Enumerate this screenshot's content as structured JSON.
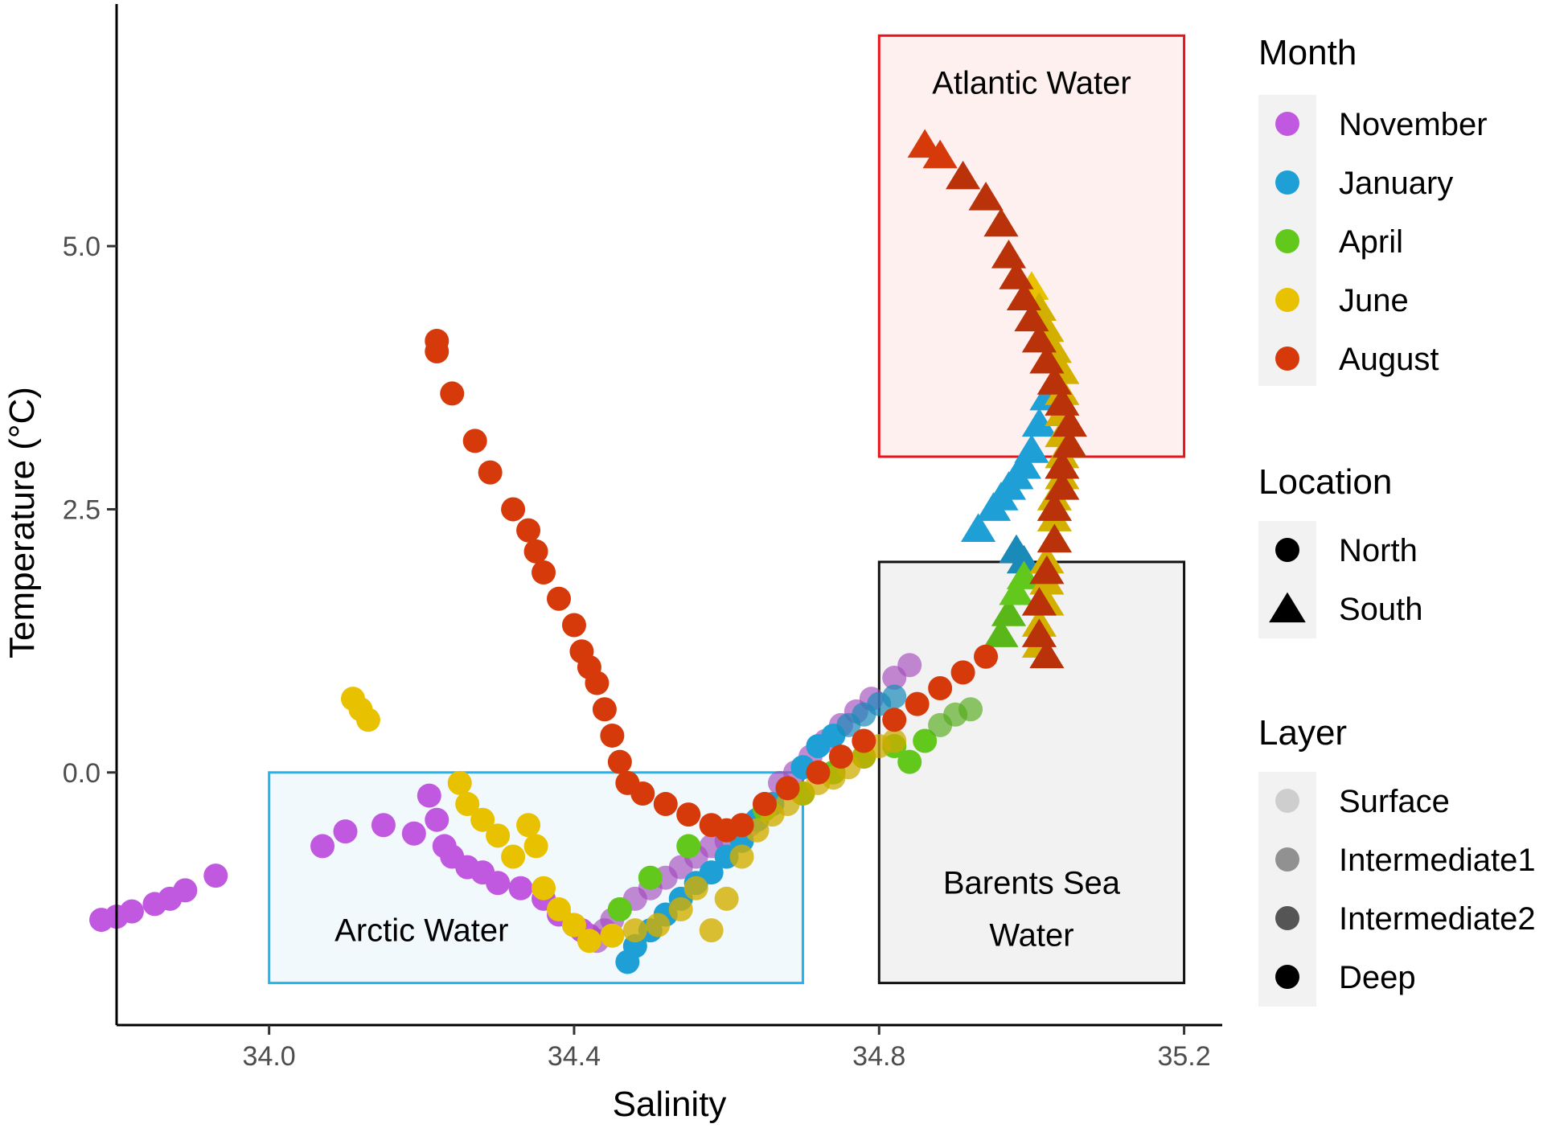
{
  "colors": {
    "November": "#c159e0",
    "January": "#1ea0d6",
    "April": "#62c91c",
    "June": "#e8c100",
    "August": "#d63a0b",
    "atlantic_stroke": "#e8141c",
    "atlantic_fill": "#fff0f0",
    "arctic_stroke": "#22b4ec",
    "arctic_fill": "#f1f9fc",
    "barents_stroke": "#111111",
    "barents_fill": "#f2f2f2"
  },
  "chart_data": {
    "type": "scatter",
    "xlabel": "Salinity",
    "ylabel": "Temperature (°C)",
    "xlim": [
      33.8,
      35.25
    ],
    "ylim": [
      -2.4,
      7.3
    ],
    "x_ticks": [
      {
        "value": 34.0,
        "label": "34.0"
      },
      {
        "value": 34.4,
        "label": "34.4"
      },
      {
        "value": 34.8,
        "label": "34.8"
      },
      {
        "value": 35.2,
        "label": "35.2"
      }
    ],
    "y_ticks": [
      {
        "value": 0.0,
        "label": "0.0"
      },
      {
        "value": 2.5,
        "label": "2.5"
      },
      {
        "value": 5.0,
        "label": "5.0"
      }
    ],
    "regions": [
      {
        "name": "atlantic",
        "label_lines": [
          "Atlantic Water"
        ],
        "xmin": 34.8,
        "xmax": 35.2,
        "ymin": 3.0,
        "ymax": 7.0,
        "label_x": 35.0,
        "label_y": 6.45
      },
      {
        "name": "arctic",
        "label_lines": [
          "Arctic Water"
        ],
        "xmin": 34.0,
        "xmax": 34.7,
        "ymin": -2.0,
        "ymax": 0.0,
        "label_x": 34.2,
        "label_y": -1.6
      },
      {
        "name": "barents",
        "label_lines": [
          "Barents Sea",
          "Water"
        ],
        "xmin": 34.8,
        "xmax": 35.2,
        "ymin": -2.0,
        "ymax": 2.0,
        "label_x": 35.0,
        "label_y": -1.15
      }
    ],
    "legend": {
      "month": {
        "title": "Month",
        "items": [
          "November",
          "January",
          "April",
          "June",
          "August"
        ]
      },
      "location": {
        "title": "Location",
        "items": [
          "North",
          "South"
        ]
      },
      "layer": {
        "title": "Layer",
        "items": [
          "Surface",
          "Intermediate1",
          "Intermediate2",
          "Deep"
        ],
        "opacities": [
          0.15,
          0.4,
          0.65,
          1.0
        ]
      }
    },
    "series": [
      {
        "name": "November",
        "location": "North",
        "points": [
          [
            33.78,
            -1.4
          ],
          [
            33.8,
            -1.37
          ],
          [
            33.82,
            -1.32
          ],
          [
            33.85,
            -1.25
          ],
          [
            33.87,
            -1.2
          ],
          [
            33.89,
            -1.12
          ],
          [
            33.93,
            -0.98
          ],
          [
            34.07,
            -0.7
          ],
          [
            34.1,
            -0.56
          ],
          [
            34.15,
            -0.5
          ],
          [
            34.19,
            -0.58
          ],
          [
            34.21,
            -0.22
          ],
          [
            34.22,
            -0.45
          ],
          [
            34.23,
            -0.7
          ],
          [
            34.24,
            -0.8
          ],
          [
            34.26,
            -0.9
          ],
          [
            34.28,
            -0.95
          ],
          [
            34.3,
            -1.05
          ],
          [
            34.33,
            -1.1
          ],
          [
            34.36,
            -1.2
          ],
          [
            34.38,
            -1.35
          ],
          [
            34.4,
            -1.45
          ],
          [
            34.41,
            -1.5
          ],
          [
            34.42,
            -1.55
          ],
          [
            34.43,
            -1.6
          ],
          [
            34.44,
            -1.5
          ],
          [
            34.45,
            -1.4
          ],
          [
            34.46,
            -1.3
          ],
          [
            34.48,
            -1.2
          ],
          [
            34.5,
            -1.1
          ],
          [
            34.52,
            -1.0
          ],
          [
            34.54,
            -0.9
          ],
          [
            34.56,
            -0.8
          ],
          [
            34.58,
            -0.7
          ],
          [
            34.6,
            -0.65
          ],
          [
            34.63,
            -0.5
          ],
          [
            34.65,
            -0.3
          ],
          [
            34.67,
            -0.1
          ],
          [
            34.69,
            0.0
          ],
          [
            34.71,
            0.15
          ],
          [
            34.73,
            0.3
          ],
          [
            34.75,
            0.45
          ],
          [
            34.77,
            0.58
          ],
          [
            34.79,
            0.7
          ],
          [
            34.82,
            0.9
          ],
          [
            34.84,
            1.02
          ]
        ],
        "opacities": [
          1,
          1,
          1,
          1,
          1,
          1,
          1,
          1,
          1,
          1,
          1,
          1,
          1,
          1,
          1,
          1,
          1,
          1,
          1,
          1,
          1,
          1,
          1,
          1,
          0.65,
          0.65,
          0.65,
          0.65,
          0.65,
          0.65,
          0.65,
          0.65,
          0.65,
          0.65,
          0.65,
          0.65,
          0.65,
          0.65,
          0.65,
          0.65,
          0.65,
          0.65,
          0.65,
          0.65,
          0.65,
          0.65
        ]
      },
      {
        "name": "January",
        "location": "North",
        "points": [
          [
            34.47,
            -1.8
          ],
          [
            34.48,
            -1.65
          ],
          [
            34.5,
            -1.5
          ],
          [
            34.52,
            -1.35
          ],
          [
            34.54,
            -1.2
          ],
          [
            34.56,
            -1.05
          ],
          [
            34.58,
            -0.95
          ],
          [
            34.6,
            -0.8
          ],
          [
            34.62,
            -0.65
          ],
          [
            34.64,
            -0.45
          ],
          [
            34.66,
            -0.3
          ],
          [
            34.68,
            -0.15
          ],
          [
            34.7,
            0.05
          ],
          [
            34.72,
            0.25
          ],
          [
            34.74,
            0.35
          ],
          [
            34.76,
            0.45
          ],
          [
            34.78,
            0.55
          ],
          [
            34.8,
            0.65
          ],
          [
            34.82,
            0.72
          ]
        ],
        "opacities": [
          1,
          1,
          1,
          1,
          1,
          1,
          1,
          1,
          1,
          1,
          1,
          1,
          1,
          1,
          1,
          0.7,
          0.7,
          0.7,
          0.7
        ]
      },
      {
        "name": "January",
        "location": "South",
        "points": [
          [
            34.93,
            2.3
          ],
          [
            34.95,
            2.5
          ],
          [
            34.96,
            2.6
          ],
          [
            34.97,
            2.7
          ],
          [
            34.98,
            2.8
          ],
          [
            34.99,
            2.9
          ],
          [
            35.0,
            3.05
          ],
          [
            35.01,
            3.3
          ],
          [
            35.02,
            3.55
          ],
          [
            34.98,
            2.1
          ],
          [
            34.99,
            2.0
          ]
        ],
        "opacities": [
          1,
          1,
          1,
          1,
          1,
          1,
          1,
          1,
          1,
          0.7,
          0.7
        ]
      },
      {
        "name": "April",
        "location": "North",
        "points": [
          [
            34.46,
            -1.3
          ],
          [
            34.5,
            -1.0
          ],
          [
            34.55,
            -0.7
          ],
          [
            34.6,
            -0.55
          ],
          [
            34.65,
            -0.35
          ],
          [
            34.7,
            -0.2
          ],
          [
            34.74,
            0.0
          ],
          [
            34.78,
            0.15
          ],
          [
            34.82,
            0.25
          ],
          [
            34.84,
            0.1
          ],
          [
            34.86,
            0.3
          ],
          [
            34.88,
            0.45
          ],
          [
            34.9,
            0.55
          ],
          [
            34.92,
            0.6
          ]
        ],
        "opacities": [
          1,
          1,
          1,
          1,
          1,
          1,
          1,
          1,
          1,
          1,
          1,
          0.65,
          0.65,
          0.65
        ]
      },
      {
        "name": "April",
        "location": "South",
        "points": [
          [
            34.96,
            1.3
          ],
          [
            34.97,
            1.5
          ],
          [
            34.98,
            1.7
          ],
          [
            34.99,
            1.85
          ]
        ],
        "opacities": [
          0.8,
          0.8,
          1,
          1
        ]
      },
      {
        "name": "June",
        "location": "North",
        "points": [
          [
            34.11,
            0.7
          ],
          [
            34.12,
            0.6
          ],
          [
            34.13,
            0.5
          ],
          [
            34.25,
            -0.1
          ],
          [
            34.26,
            -0.3
          ],
          [
            34.28,
            -0.45
          ],
          [
            34.3,
            -0.6
          ],
          [
            34.32,
            -0.8
          ],
          [
            34.34,
            -0.5
          ],
          [
            34.35,
            -0.7
          ],
          [
            34.36,
            -1.1
          ],
          [
            34.38,
            -1.3
          ],
          [
            34.4,
            -1.45
          ],
          [
            34.42,
            -1.6
          ],
          [
            34.45,
            -1.55
          ],
          [
            34.48,
            -1.5
          ],
          [
            34.51,
            -1.45
          ],
          [
            34.54,
            -1.3
          ],
          [
            34.56,
            -1.1
          ],
          [
            34.58,
            -1.5
          ],
          [
            34.6,
            -1.2
          ],
          [
            34.62,
            -0.8
          ],
          [
            34.64,
            -0.55
          ],
          [
            34.66,
            -0.4
          ],
          [
            34.68,
            -0.3
          ],
          [
            34.7,
            -0.2
          ],
          [
            34.72,
            -0.1
          ],
          [
            34.74,
            -0.05
          ],
          [
            34.76,
            0.05
          ],
          [
            34.78,
            0.15
          ],
          [
            34.8,
            0.25
          ],
          [
            34.82,
            0.3
          ]
        ],
        "opacities": [
          1,
          1,
          1,
          1,
          1,
          1,
          1,
          1,
          1,
          1,
          1,
          1,
          1,
          1,
          1,
          0.8,
          0.8,
          0.8,
          0.8,
          0.8,
          0.8,
          0.8,
          0.8,
          0.8,
          0.75,
          0.75,
          0.75,
          0.75,
          0.75,
          0.75,
          0.75,
          0.75
        ]
      },
      {
        "name": "June",
        "location": "South",
        "points": [
          [
            35.0,
            4.6
          ],
          [
            35.01,
            4.4
          ],
          [
            35.02,
            4.2
          ],
          [
            35.03,
            4.0
          ],
          [
            35.04,
            3.8
          ],
          [
            35.04,
            3.6
          ],
          [
            35.04,
            3.4
          ],
          [
            35.04,
            3.2
          ],
          [
            35.04,
            3.0
          ],
          [
            35.04,
            2.8
          ],
          [
            35.03,
            2.6
          ],
          [
            35.03,
            2.4
          ],
          [
            35.03,
            2.2
          ],
          [
            35.02,
            2.0
          ],
          [
            35.02,
            1.8
          ],
          [
            35.02,
            1.6
          ],
          [
            35.01,
            1.4
          ],
          [
            35.01,
            1.2
          ]
        ],
        "opacities": [
          1,
          0.8,
          0.8,
          0.8,
          0.8,
          0.8,
          0.8,
          0.8,
          0.8,
          0.8,
          0.8,
          0.8,
          0.8,
          0.8,
          0.8,
          0.8,
          0.8,
          0.8
        ]
      },
      {
        "name": "August",
        "location": "North",
        "points": [
          [
            34.22,
            4.1
          ],
          [
            34.22,
            4.0
          ],
          [
            34.24,
            3.6
          ],
          [
            34.27,
            3.15
          ],
          [
            34.29,
            2.85
          ],
          [
            34.32,
            2.5
          ],
          [
            34.34,
            2.3
          ],
          [
            34.35,
            2.1
          ],
          [
            34.36,
            1.9
          ],
          [
            34.38,
            1.65
          ],
          [
            34.4,
            1.4
          ],
          [
            34.41,
            1.15
          ],
          [
            34.42,
            1.0
          ],
          [
            34.43,
            0.85
          ],
          [
            34.44,
            0.6
          ],
          [
            34.45,
            0.35
          ],
          [
            34.46,
            0.1
          ],
          [
            34.47,
            -0.1
          ],
          [
            34.49,
            -0.2
          ],
          [
            34.52,
            -0.3
          ],
          [
            34.55,
            -0.4
          ],
          [
            34.58,
            -0.5
          ],
          [
            34.6,
            -0.55
          ],
          [
            34.62,
            -0.5
          ],
          [
            34.65,
            -0.3
          ],
          [
            34.68,
            -0.15
          ],
          [
            34.72,
            0.0
          ],
          [
            34.75,
            0.15
          ],
          [
            34.78,
            0.3
          ],
          [
            34.82,
            0.5
          ],
          [
            34.85,
            0.65
          ],
          [
            34.88,
            0.8
          ],
          [
            34.91,
            0.95
          ],
          [
            34.94,
            1.1
          ]
        ],
        "opacities": [
          1,
          1,
          1,
          1,
          1,
          1,
          1,
          1,
          1,
          1,
          1,
          1,
          1,
          1,
          1,
          1,
          1,
          1,
          1,
          1,
          1,
          1,
          1,
          1,
          1,
          1,
          1,
          1,
          1,
          1,
          1,
          1,
          1,
          1
        ]
      },
      {
        "name": "August",
        "location": "South",
        "points": [
          [
            34.86,
            5.95
          ],
          [
            34.88,
            5.85
          ],
          [
            34.91,
            5.65
          ],
          [
            34.94,
            5.45
          ],
          [
            34.96,
            5.2
          ],
          [
            34.97,
            4.9
          ],
          [
            34.98,
            4.7
          ],
          [
            34.99,
            4.5
          ],
          [
            35.0,
            4.3
          ],
          [
            35.01,
            4.1
          ],
          [
            35.02,
            3.9
          ],
          [
            35.03,
            3.7
          ],
          [
            35.04,
            3.5
          ],
          [
            35.05,
            3.3
          ],
          [
            35.05,
            3.1
          ],
          [
            35.04,
            2.9
          ],
          [
            35.04,
            2.7
          ],
          [
            35.03,
            2.5
          ],
          [
            35.03,
            2.2
          ],
          [
            35.02,
            1.9
          ],
          [
            35.01,
            1.6
          ],
          [
            35.01,
            1.3
          ],
          [
            35.02,
            1.1
          ]
        ],
        "opacities": [
          1,
          1,
          0.7,
          0.7,
          0.7,
          0.7,
          0.7,
          0.7,
          0.7,
          0.7,
          0.7,
          0.7,
          0.7,
          0.7,
          0.7,
          0.7,
          0.7,
          0.7,
          0.7,
          0.7,
          0.7,
          0.7,
          0.7
        ]
      }
    ]
  }
}
